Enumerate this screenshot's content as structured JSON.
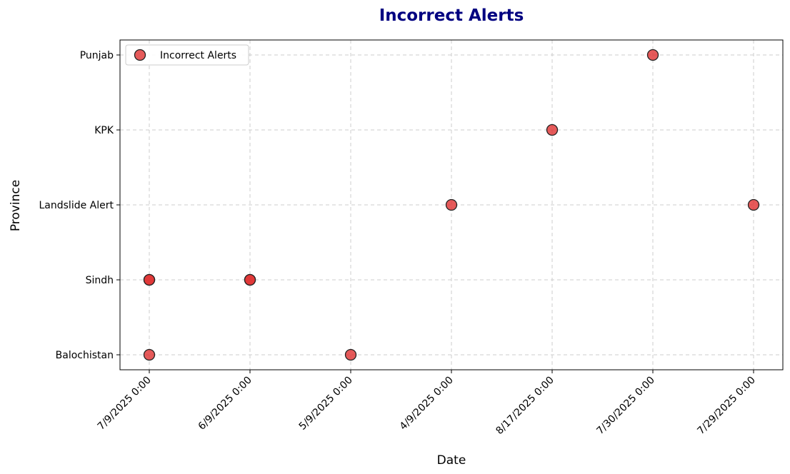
{
  "chart_data": {
    "type": "scatter",
    "title": "Incorrect Alerts",
    "xlabel": "Date",
    "ylabel": "Province",
    "x_categories": [
      "7/9/2025 0:00",
      "6/9/2025 0:00",
      "5/9/2025 0:00",
      "4/9/2025 0:00",
      "8/17/2025 0:00",
      "7/30/2025 0:00",
      "7/29/2025 0:00"
    ],
    "y_categories": [
      "Balochistan",
      "Sindh",
      "Landslide Alert",
      "KPK",
      "Punjab"
    ],
    "series": [
      {
        "name": "Incorrect Alerts",
        "color": "#e03131",
        "points": [
          {
            "x": "7/9/2025 0:00",
            "y": "Sindh"
          },
          {
            "x": "7/9/2025 0:00",
            "y": "Sindh"
          },
          {
            "x": "7/9/2025 0:00",
            "y": "Balochistan"
          },
          {
            "x": "6/9/2025 0:00",
            "y": "Sindh"
          },
          {
            "x": "6/9/2025 0:00",
            "y": "Sindh"
          },
          {
            "x": "5/9/2025 0:00",
            "y": "Balochistan"
          },
          {
            "x": "4/9/2025 0:00",
            "y": "Landslide Alert"
          },
          {
            "x": "8/17/2025 0:00",
            "y": "KPK"
          },
          {
            "x": "7/30/2025 0:00",
            "y": "Punjab"
          },
          {
            "x": "7/29/2025 0:00",
            "y": "Landslide Alert"
          }
        ]
      }
    ],
    "grid": true,
    "legend": "upper-left"
  }
}
